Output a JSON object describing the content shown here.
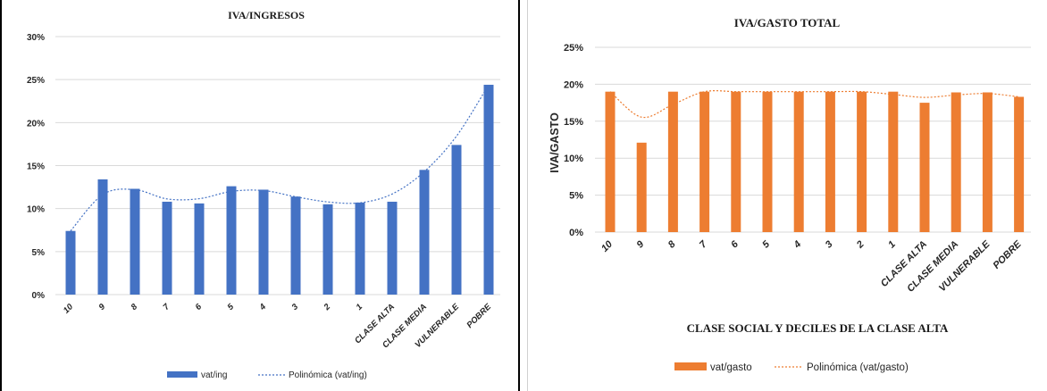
{
  "chart_data": [
    {
      "type": "bar",
      "title": "IVA/INGRESOS",
      "xlabel": "",
      "ylabel": "",
      "categories": [
        "10",
        "9",
        "8",
        "7",
        "6",
        "5",
        "4",
        "3",
        "2",
        "1",
        "CLASE ALTA",
        "CLASE MEDIA",
        "VULNERABLE",
        "POBRE"
      ],
      "series": [
        {
          "name": "vat/ing",
          "values": [
            0.074,
            0.134,
            0.123,
            0.108,
            0.106,
            0.126,
            0.122,
            0.114,
            0.105,
            0.107,
            0.108,
            0.145,
            0.174,
            0.244
          ]
        }
      ],
      "trendline": {
        "name": "Polinómica (vat/ing)",
        "type": "polynomial"
      },
      "ylim": [
        0,
        0.3
      ],
      "yticks": [
        "0%",
        "5%",
        "10%",
        "15%",
        "20%",
        "25%",
        "30%"
      ],
      "grid": true,
      "legend": "bottom",
      "colors": {
        "bar": "#4472C4",
        "trend": "#4472C4"
      }
    },
    {
      "type": "bar",
      "title": "IVA/GASTO  TOTAL",
      "xlabel": "CLASE SOCIAL Y DECILES DE LA CLASE ALTA",
      "ylabel": "IVA/GASTO",
      "categories": [
        "10",
        "9",
        "8",
        "7",
        "6",
        "5",
        "4",
        "3",
        "2",
        "1",
        "CLASE ALTA",
        "CLASE MEDIA",
        "VULNERABLE",
        "POBRE"
      ],
      "series": [
        {
          "name": "vat/gasto",
          "values": [
            0.19,
            0.121,
            0.19,
            0.19,
            0.19,
            0.19,
            0.19,
            0.19,
            0.19,
            0.19,
            0.175,
            0.189,
            0.189,
            0.183
          ]
        }
      ],
      "trendline": {
        "name": "Polinómica (vat/gasto)",
        "type": "polynomial"
      },
      "ylim": [
        0,
        0.25
      ],
      "yticks": [
        "0%",
        "5%",
        "10%",
        "15%",
        "20%",
        "25%"
      ],
      "grid": true,
      "legend": "bottom",
      "colors": {
        "bar": "#ED7D31",
        "trend": "#ED7D31"
      }
    }
  ]
}
